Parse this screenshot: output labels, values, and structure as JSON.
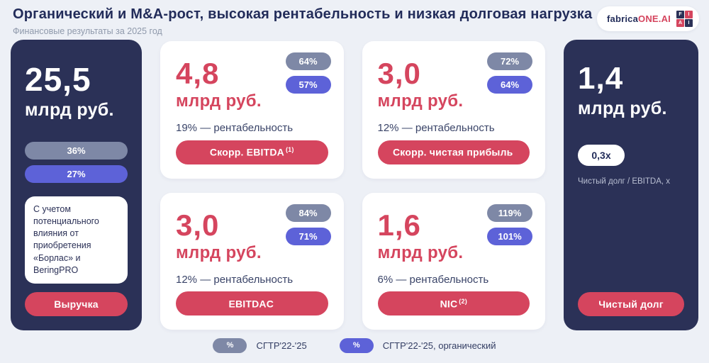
{
  "colors": {
    "page_bg": "#edf0f6",
    "dark_navy": "#2b3157",
    "accent_red": "#d5455e",
    "badge_gray": "#7e88a6",
    "badge_purple": "#5d62d8",
    "title_navy": "#222c5a"
  },
  "header": {
    "title": "Органический и M&A-рост, высокая рентабельность и низкая долговая нагрузка",
    "subtitle": "Финансовые результаты за 2025 год",
    "logo": {
      "brand_left": "fabrica",
      "brand_right": "ONE.AI",
      "grid": [
        "F",
        "I",
        "A",
        "I"
      ]
    }
  },
  "left_card": {
    "value": "25,5",
    "unit": "млрд руб.",
    "badge_total": "36%",
    "badge_organic": "27%",
    "note": "С учетом потенциального влияния от приобретения «Борлас» и BeringPRO",
    "button": "Выручка"
  },
  "metric_cards": [
    {
      "value": "4,8",
      "unit": "млрд руб.",
      "badge_total": "64%",
      "badge_organic": "57%",
      "margin": "19% — рентабельность",
      "button": "Скорр. EBITDA",
      "button_sup": "(1)"
    },
    {
      "value": "3,0",
      "unit": "млрд руб.",
      "badge_total": "72%",
      "badge_organic": "64%",
      "margin": "12% — рентабельность",
      "button": "Скорр. чистая прибыль",
      "button_sup": ""
    },
    {
      "value": "3,0",
      "unit": "млрд руб.",
      "badge_total": "84%",
      "badge_organic": "71%",
      "margin": "12% — рентабельность",
      "button": "EBITDAC",
      "button_sup": ""
    },
    {
      "value": "1,6",
      "unit": "млрд руб.",
      "badge_total": "119%",
      "badge_organic": "101%",
      "margin": "6% — рентабельность",
      "button": "NIC",
      "button_sup": "(2)"
    }
  ],
  "right_card": {
    "value": "1,4",
    "unit": "млрд руб.",
    "ratio_badge": "0,3x",
    "ratio_label": "Чистый долг / EBITDA, x",
    "button": "Чистый долг"
  },
  "legend": [
    {
      "swatch": "%",
      "label": "СГТР'22-'25",
      "color": "#7e88a6"
    },
    {
      "swatch": "%",
      "label": "СГТР'22-'25, органический",
      "color": "#5d62d8"
    }
  ]
}
